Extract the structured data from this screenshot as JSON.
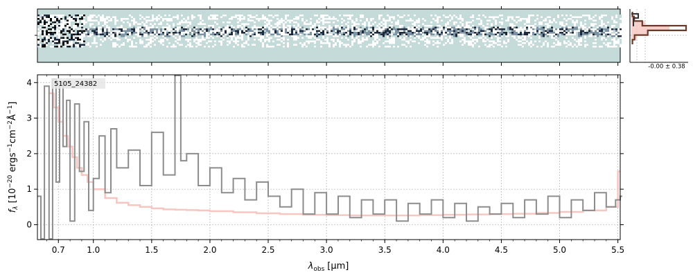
{
  "chart_data": [
    {
      "type": "heatmap",
      "role": "2D spectrum",
      "colormap": [
        "#ffffff",
        "#c5dbd9",
        "#7d93a3",
        "#1d2a3c",
        "#000000"
      ],
      "background": "#c5dbd9",
      "trace_x_range": [
        0.5,
        5.5
      ]
    },
    {
      "type": "line",
      "role": "spatial profile",
      "annotation": "-0.00 ± 0.38",
      "series": [
        {
          "name": "profile",
          "color": "#6b3a2a",
          "values": [
            0.02,
            0.05,
            0.2,
            1.0,
            0.3,
            0.06,
            0.02
          ]
        },
        {
          "name": "model",
          "color": "#f7c6bf",
          "values": [
            0.03,
            0.08,
            0.25,
            0.7,
            0.32,
            0.1,
            0.03
          ]
        }
      ]
    },
    {
      "type": "line",
      "label": "5105_24382",
      "xlabel_main": "λ",
      "xlabel_sub": "obs",
      "xlabel_unit": "[μm]",
      "ylabel": "f_λ [10^-20 ergs^-1 cm^-2 Å^-1]",
      "xlim": [
        0.52,
        5.52
      ],
      "ylim": [
        -0.42,
        4.22
      ],
      "x_ticks": [
        0.7,
        1.0,
        1.5,
        2.0,
        2.5,
        3.0,
        3.5,
        4.0,
        4.5,
        5.0,
        5.5
      ],
      "x_tick_labels": [
        "0.7",
        "1.0",
        "1.5",
        "2.0",
        "2.5",
        "3.0",
        "3.5",
        "4.0",
        "4.5",
        "5.0",
        "5.5"
      ],
      "y_ticks": [
        0,
        1,
        2,
        3,
        4
      ],
      "y_tick_labels": [
        "0",
        "1",
        "2",
        "3",
        "4"
      ],
      "grid": true,
      "series": [
        {
          "name": "data",
          "color": "#8c8c8c",
          "x": [
            0.52,
            0.55,
            0.58,
            0.62,
            0.65,
            0.68,
            0.71,
            0.74,
            0.77,
            0.8,
            0.84,
            0.88,
            0.92,
            0.96,
            1.0,
            1.05,
            1.1,
            1.15,
            1.2,
            1.3,
            1.4,
            1.5,
            1.6,
            1.7,
            1.75,
            1.8,
            1.9,
            2.0,
            2.1,
            2.2,
            2.3,
            2.4,
            2.5,
            2.6,
            2.7,
            2.8,
            2.9,
            3.0,
            3.1,
            3.2,
            3.3,
            3.4,
            3.5,
            3.6,
            3.7,
            3.8,
            3.9,
            4.0,
            4.1,
            4.2,
            4.3,
            4.4,
            4.5,
            4.6,
            4.7,
            4.8,
            4.9,
            5.0,
            5.1,
            5.2,
            5.3,
            5.4,
            5.48,
            5.52
          ],
          "values": [
            0.8,
            -0.4,
            3.9,
            -0.4,
            4.1,
            1.2,
            4.0,
            2.2,
            3.5,
            0.1,
            3.4,
            1.5,
            2.9,
            0.4,
            1.3,
            2.5,
            0.9,
            2.7,
            1.6,
            2.1,
            1.1,
            2.6,
            1.4,
            4.2,
            1.8,
            2.0,
            1.1,
            1.6,
            0.9,
            1.3,
            0.7,
            1.2,
            0.8,
            0.5,
            1.0,
            0.3,
            0.9,
            0.3,
            0.8,
            0.2,
            0.7,
            0.3,
            0.7,
            0.1,
            0.6,
            0.3,
            0.7,
            0.2,
            0.6,
            0.1,
            0.5,
            0.3,
            0.6,
            0.2,
            0.7,
            0.3,
            0.8,
            0.2,
            0.7,
            0.4,
            0.9,
            0.5,
            0.7,
            0.8
          ]
        },
        {
          "name": "model",
          "color": "#f7c6c1",
          "x": [
            0.62,
            0.66,
            0.7,
            0.74,
            0.78,
            0.82,
            0.86,
            0.9,
            0.95,
            1.0,
            1.1,
            1.2,
            1.3,
            1.4,
            1.5,
            1.6,
            1.7,
            1.8,
            1.9,
            2.0,
            2.2,
            2.4,
            2.6,
            2.8,
            3.0,
            3.2,
            3.4,
            3.6,
            3.8,
            4.0,
            4.2,
            4.4,
            4.6,
            4.8,
            5.0,
            5.2,
            5.4,
            5.5
          ],
          "values": [
            3.7,
            3.3,
            2.9,
            2.5,
            2.2,
            1.9,
            1.6,
            1.4,
            1.2,
            1.0,
            0.75,
            0.62,
            0.55,
            0.5,
            0.46,
            0.43,
            0.42,
            0.41,
            0.4,
            0.38,
            0.35,
            0.32,
            0.3,
            0.28,
            0.27,
            0.26,
            0.26,
            0.26,
            0.27,
            0.28,
            0.29,
            0.3,
            0.31,
            0.33,
            0.36,
            0.4,
            0.5,
            1.5
          ]
        }
      ]
    }
  ]
}
